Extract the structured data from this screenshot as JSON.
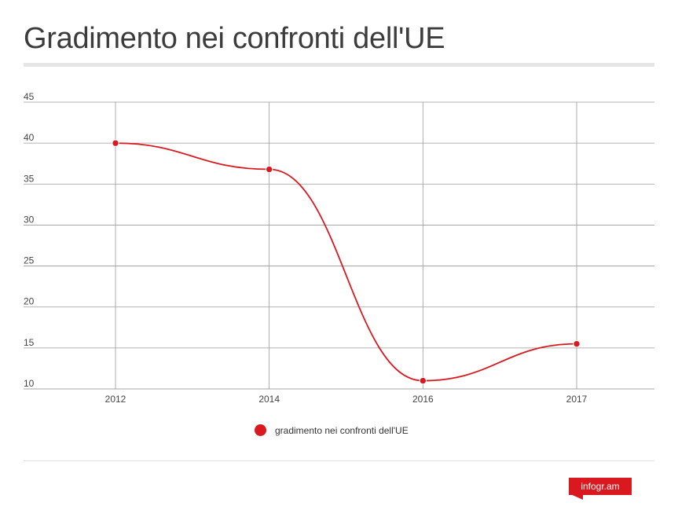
{
  "header": {
    "title": "Gradimento nei confronti dell'UE"
  },
  "chart_data": {
    "type": "line",
    "title": "Gradimento nei confronti dell'UE",
    "xlabel": "",
    "ylabel": "",
    "categories": [
      "2012",
      "2014",
      "2016",
      "2017"
    ],
    "y_ticks": [
      45,
      40,
      35,
      30,
      25,
      20,
      15,
      10
    ],
    "ylim": [
      10,
      45
    ],
    "grid": true,
    "legend_position": "bottom",
    "series": [
      {
        "name": "gradimento nei confronti dell'UE",
        "values": [
          40,
          36.8,
          11,
          15.5
        ],
        "color": "#d9191f"
      }
    ]
  },
  "legend": {
    "label": "gradimento nei confronti dell'UE"
  },
  "brand": {
    "text": "infogr.am",
    "color": "#d9191f"
  }
}
